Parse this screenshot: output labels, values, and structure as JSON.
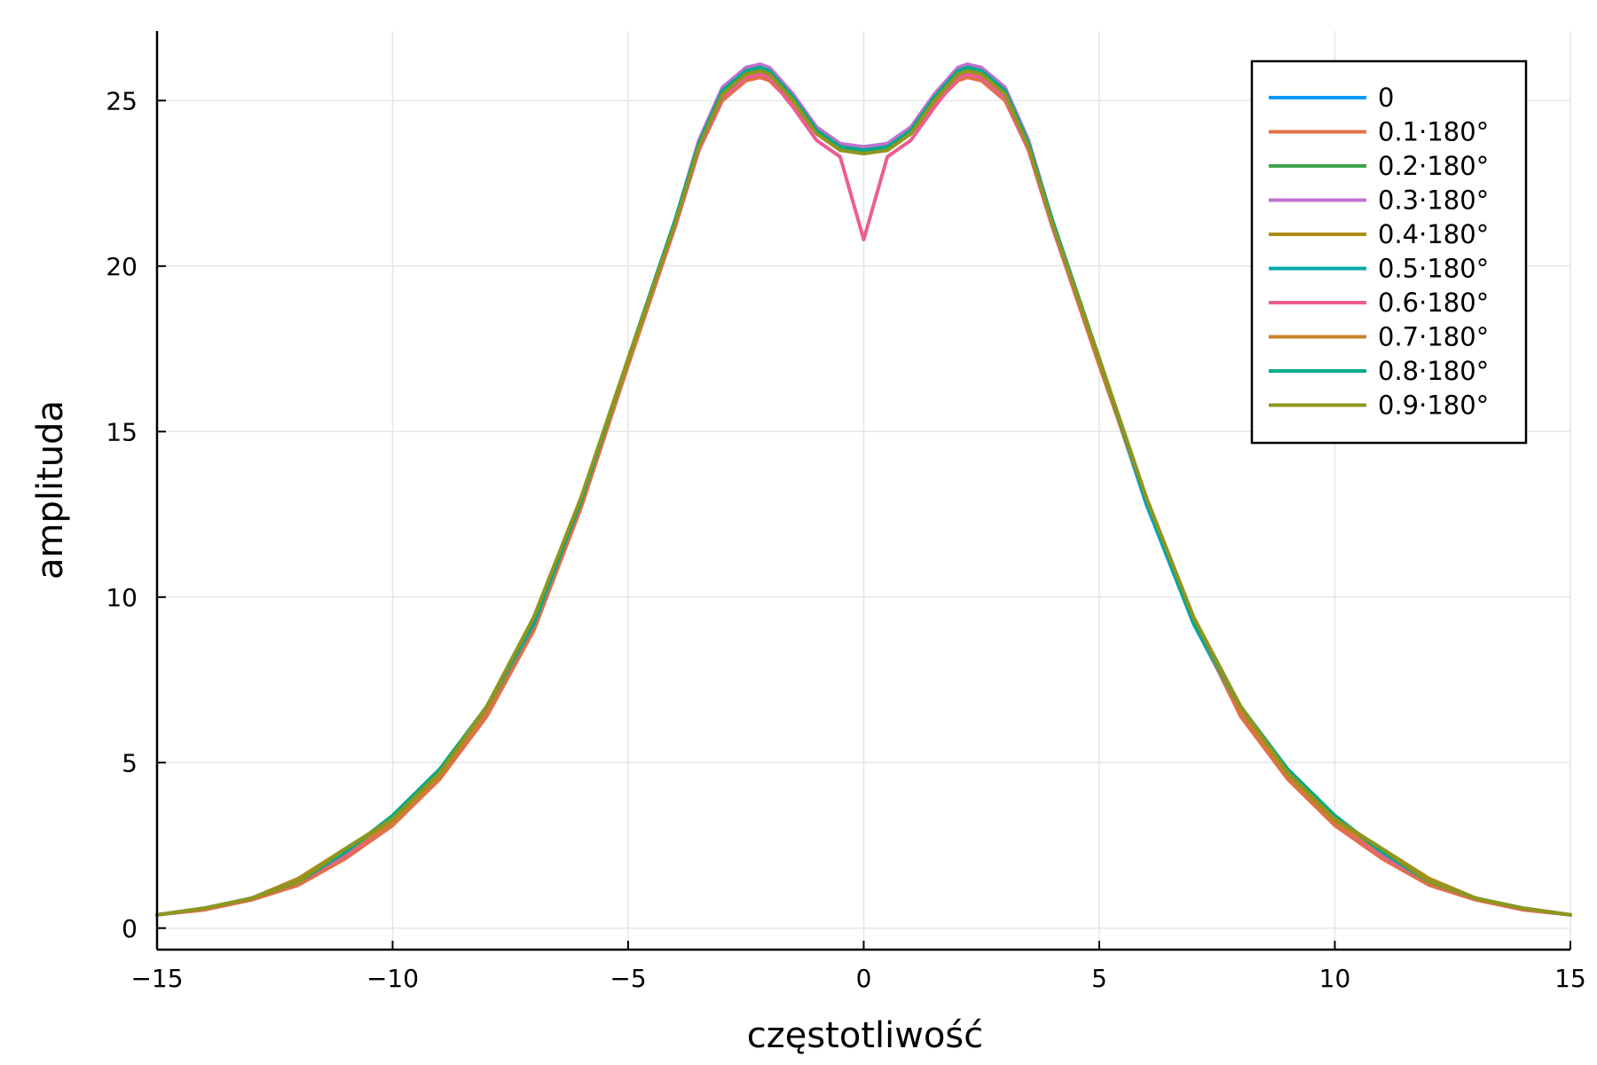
{
  "chart_data": {
    "type": "line",
    "title": "",
    "xlabel": "częstotliwość",
    "ylabel": "amplituda",
    "xlim": [
      -15,
      15
    ],
    "ylim": [
      -0.65,
      27.1
    ],
    "x_ticks": [
      -15,
      -10,
      -5,
      0,
      5,
      10,
      15
    ],
    "x_tick_labels": [
      "−15",
      "−10",
      "−5",
      "0",
      "5",
      "10",
      "15"
    ],
    "y_ticks": [
      0,
      5,
      10,
      15,
      20,
      25
    ],
    "y_tick_labels": [
      "0",
      "5",
      "10",
      "15",
      "20",
      "25"
    ],
    "grid": true,
    "legend_position": "top-right",
    "x": [
      -15,
      -14,
      -13,
      -12,
      -11,
      -10,
      -9,
      -8,
      -7,
      -6,
      -5,
      -4,
      -3.5,
      -3,
      -2.5,
      -2.2,
      -2,
      -1.5,
      -1,
      -0.5,
      0,
      0.5,
      1,
      1.5,
      2,
      2.2,
      2.5,
      3,
      3.5,
      4,
      5,
      6,
      7,
      8,
      9,
      10,
      11,
      12,
      13,
      14,
      15
    ],
    "series": [
      {
        "name": "0",
        "color": "#009AFA",
        "values": [
          0.4,
          0.6,
          0.9,
          1.4,
          2.2,
          3.2,
          4.6,
          6.5,
          9.2,
          12.8,
          17.1,
          21.3,
          23.6,
          25.2,
          25.8,
          25.9,
          25.8,
          25.0,
          24.1,
          23.6,
          23.5,
          23.6,
          24.1,
          25.0,
          25.8,
          25.9,
          25.8,
          25.2,
          23.6,
          21.3,
          17.1,
          12.8,
          9.2,
          6.5,
          4.6,
          3.2,
          2.2,
          1.4,
          0.9,
          0.6,
          0.4
        ]
      },
      {
        "name": "0.1·180°",
        "color": "#E36F47",
        "values": [
          0.4,
          0.55,
          0.85,
          1.3,
          2.1,
          3.1,
          4.5,
          6.4,
          9.0,
          12.7,
          17.0,
          21.2,
          23.5,
          25.0,
          25.6,
          25.7,
          25.6,
          24.9,
          24.0,
          23.5,
          23.4,
          23.5,
          24.0,
          24.9,
          25.6,
          25.7,
          25.6,
          25.0,
          23.5,
          21.2,
          17.0,
          12.9,
          9.3,
          6.4,
          4.5,
          3.1,
          2.1,
          1.3,
          0.85,
          0.55,
          0.4
        ]
      },
      {
        "name": "0.2·180°",
        "color": "#3EA44E",
        "values": [
          0.4,
          0.6,
          0.9,
          1.4,
          2.3,
          3.3,
          4.6,
          6.6,
          9.3,
          12.9,
          17.2,
          21.4,
          23.7,
          25.3,
          25.9,
          26.0,
          25.9,
          25.1,
          24.2,
          23.7,
          23.6,
          23.7,
          24.2,
          25.1,
          25.9,
          26.0,
          25.9,
          25.3,
          23.7,
          21.4,
          17.2,
          12.9,
          9.3,
          6.6,
          4.6,
          3.3,
          2.3,
          1.4,
          0.9,
          0.6,
          0.4
        ]
      },
      {
        "name": "0.3·180°",
        "color": "#C271D2",
        "values": [
          0.4,
          0.6,
          0.9,
          1.4,
          2.3,
          3.2,
          4.6,
          6.6,
          9.3,
          12.9,
          17.2,
          21.4,
          23.8,
          25.4,
          26.0,
          26.1,
          26.0,
          25.2,
          24.2,
          23.7,
          23.6,
          23.7,
          24.2,
          25.2,
          26.0,
          26.1,
          26.0,
          25.4,
          23.8,
          21.4,
          17.2,
          12.9,
          9.3,
          6.6,
          4.6,
          3.2,
          2.3,
          1.4,
          0.9,
          0.6,
          0.4
        ]
      },
      {
        "name": "0.4·180°",
        "color": "#AC8D18",
        "values": [
          0.4,
          0.6,
          0.9,
          1.5,
          2.4,
          3.3,
          4.7,
          6.7,
          9.4,
          13.0,
          17.2,
          21.3,
          23.6,
          25.2,
          25.8,
          25.9,
          25.8,
          25.0,
          24.1,
          23.6,
          23.5,
          23.6,
          24.1,
          25.0,
          25.8,
          25.9,
          25.8,
          25.2,
          23.6,
          21.3,
          17.2,
          13.0,
          9.4,
          6.7,
          4.7,
          3.3,
          2.4,
          1.5,
          0.9,
          0.6,
          0.4
        ]
      },
      {
        "name": "0.5·180°",
        "color": "#00A9AD",
        "values": [
          0.4,
          0.6,
          0.9,
          1.4,
          2.2,
          3.3,
          4.7,
          6.6,
          9.2,
          12.9,
          17.2,
          21.4,
          23.7,
          25.3,
          25.9,
          26.0,
          25.9,
          25.1,
          24.1,
          23.6,
          23.5,
          23.6,
          24.1,
          25.1,
          25.9,
          26.0,
          25.9,
          25.3,
          23.7,
          21.4,
          17.2,
          12.9,
          9.2,
          6.6,
          4.7,
          3.3,
          2.2,
          1.4,
          0.9,
          0.6,
          0.4
        ]
      },
      {
        "name": "0.6·180°",
        "color": "#ED5D92",
        "values": [
          0.4,
          0.6,
          0.9,
          1.4,
          2.2,
          3.2,
          4.6,
          6.6,
          9.4,
          13.0,
          17.1,
          21.2,
          23.5,
          25.1,
          25.7,
          25.8,
          25.7,
          24.8,
          23.8,
          23.3,
          20.8,
          23.3,
          23.8,
          24.8,
          25.7,
          25.8,
          25.7,
          25.1,
          23.5,
          21.2,
          17.1,
          13.0,
          9.4,
          6.6,
          4.6,
          3.2,
          2.2,
          1.4,
          0.9,
          0.6,
          0.4
        ]
      },
      {
        "name": "0.7·180°",
        "color": "#C68225",
        "values": [
          0.4,
          0.6,
          0.9,
          1.4,
          2.3,
          3.2,
          4.6,
          6.6,
          9.3,
          12.9,
          17.1,
          21.3,
          23.6,
          25.2,
          25.8,
          25.9,
          25.8,
          25.0,
          24.0,
          23.5,
          23.4,
          23.5,
          24.0,
          25.0,
          25.8,
          25.9,
          25.8,
          25.2,
          23.6,
          21.3,
          17.1,
          12.9,
          9.3,
          6.6,
          4.6,
          3.2,
          2.3,
          1.4,
          0.9,
          0.6,
          0.4
        ]
      },
      {
        "name": "0.8·180°",
        "color": "#00A98D",
        "values": [
          0.4,
          0.6,
          0.9,
          1.4,
          2.3,
          3.4,
          4.8,
          6.7,
          9.3,
          12.9,
          17.2,
          21.4,
          23.7,
          25.3,
          25.9,
          26.0,
          25.9,
          25.1,
          24.1,
          23.6,
          23.5,
          23.6,
          24.1,
          25.1,
          25.9,
          26.0,
          25.9,
          25.3,
          23.7,
          21.4,
          17.2,
          12.9,
          9.3,
          6.7,
          4.8,
          3.4,
          2.3,
          1.4,
          0.9,
          0.6,
          0.4
        ]
      },
      {
        "name": "0.9·180°",
        "color": "#8E971D",
        "values": [
          0.4,
          0.6,
          0.9,
          1.4,
          2.4,
          3.3,
          4.7,
          6.7,
          9.4,
          13.0,
          17.2,
          21.3,
          23.6,
          25.2,
          25.8,
          25.9,
          25.8,
          25.0,
          24.0,
          23.5,
          23.4,
          23.5,
          24.0,
          25.0,
          25.8,
          25.9,
          25.8,
          25.2,
          23.6,
          21.3,
          17.2,
          13.0,
          9.4,
          6.7,
          4.7,
          3.3,
          2.4,
          1.4,
          0.9,
          0.6,
          0.4
        ]
      }
    ]
  }
}
